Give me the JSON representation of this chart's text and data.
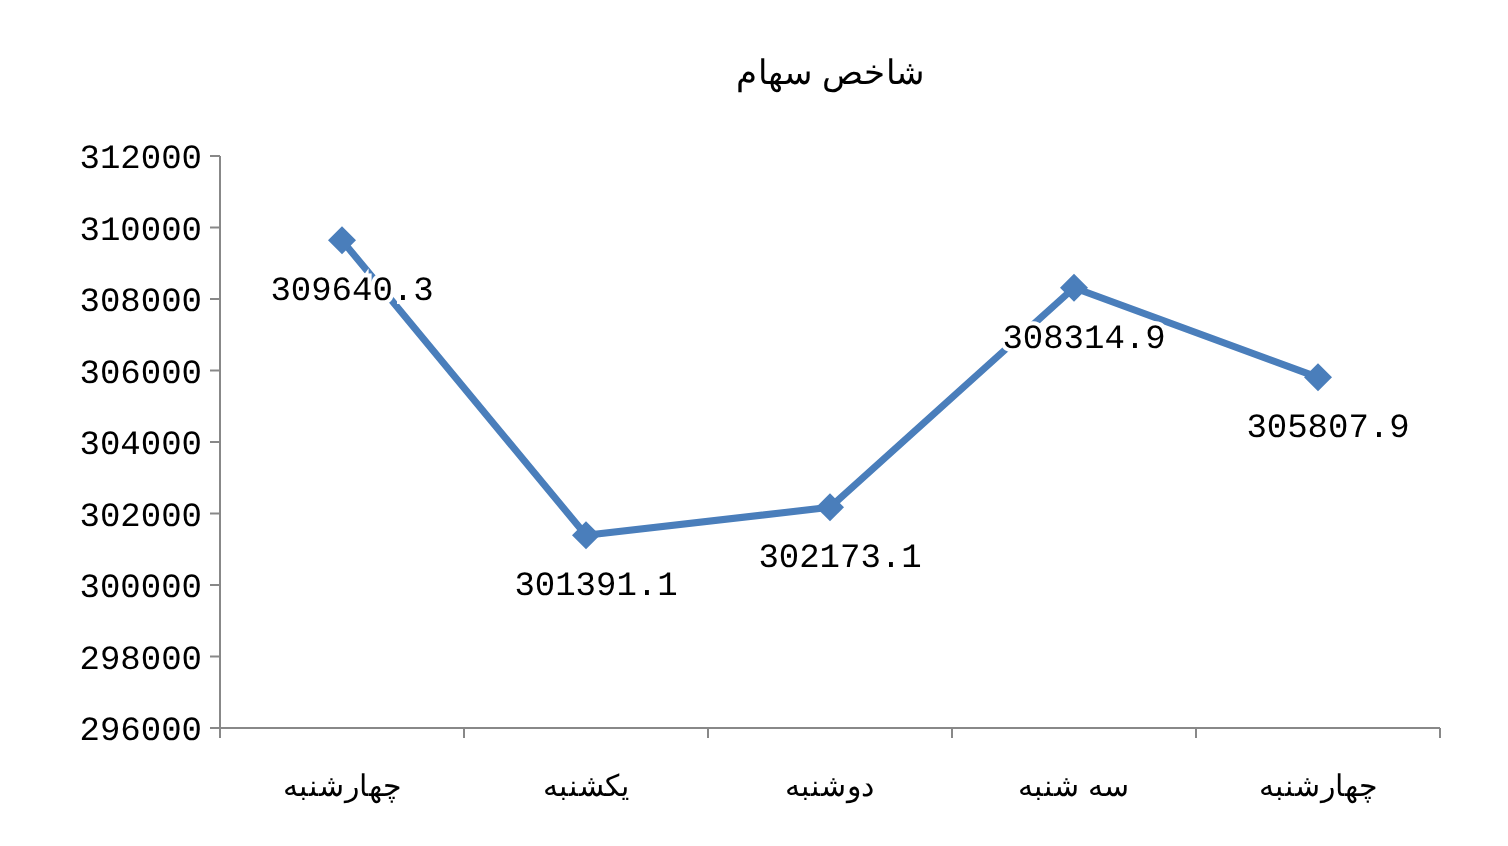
{
  "chart_data": {
    "type": "line",
    "title": "شاخص سهام",
    "categories": [
      "چهارشنبه",
      "یکشنبه",
      "دوشنبه",
      "سه شنبه",
      "چهارشنبه"
    ],
    "series": [
      {
        "color": "#4a7ebb",
        "values": [
          309640.3,
          301391.1,
          302173.1,
          308314.9,
          305807.9
        ]
      }
    ],
    "ylim": [
      296000,
      312000
    ],
    "yticks": [
      296000,
      298000,
      300000,
      302000,
      304000,
      306000,
      308000,
      310000,
      312000
    ],
    "data_labels": true,
    "marker": "diamond",
    "line_style": "solid",
    "grid": false
  }
}
